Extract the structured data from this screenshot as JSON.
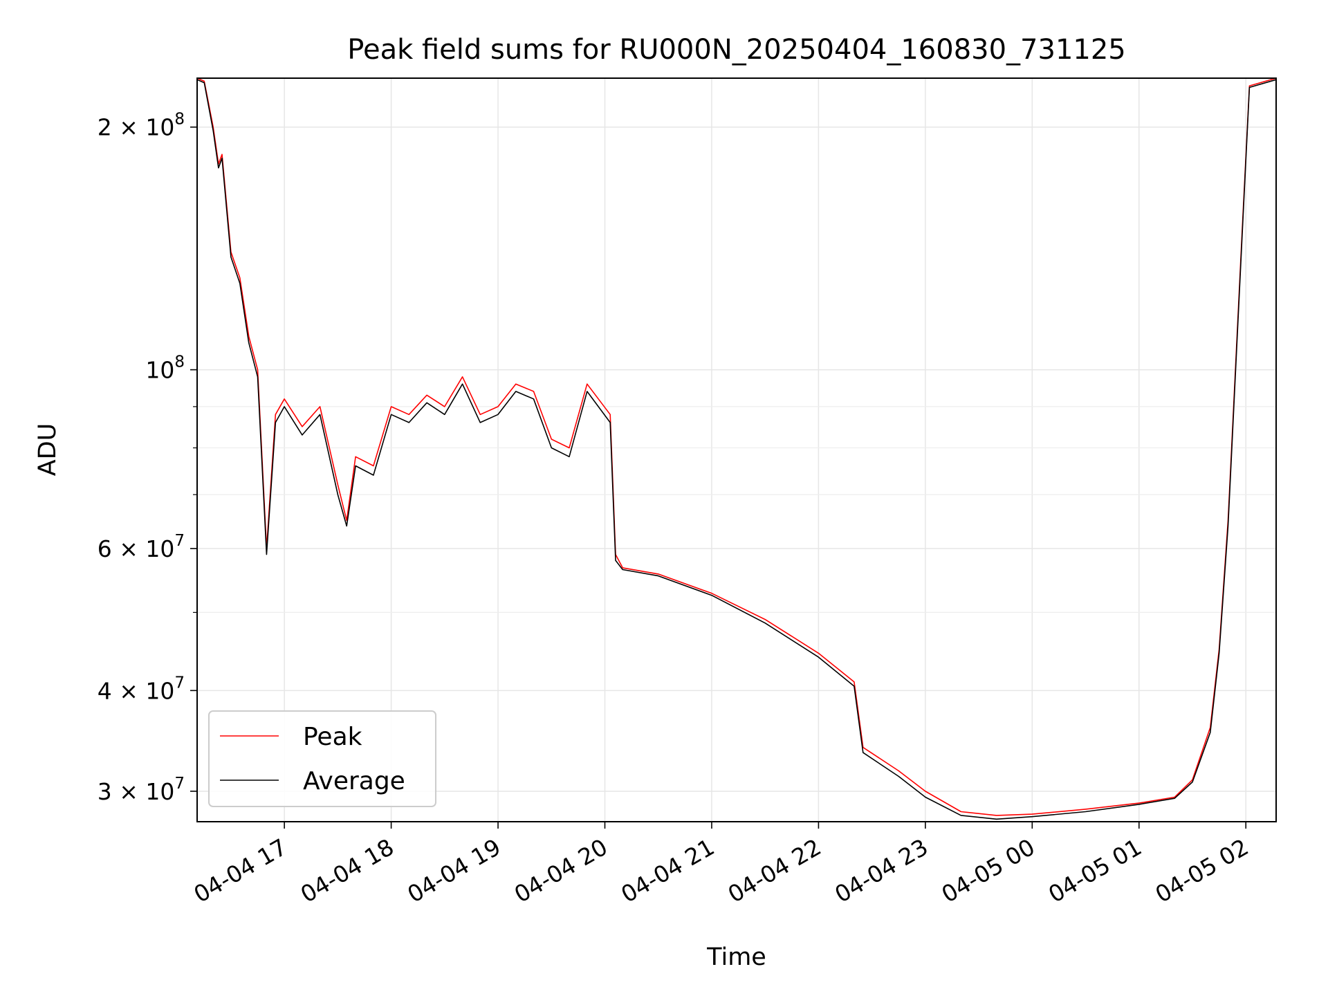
{
  "chart_data": {
    "type": "line",
    "title": "Peak field sums for RU000N_20250404_160830_731125",
    "xlabel": "Time",
    "ylabel": "ADU",
    "yscale": "log",
    "xlim": [
      "2025-04-04 16:11",
      "2025-04-05 02:17"
    ],
    "ylim": [
      27500000,
      230000000
    ],
    "grid": true,
    "legend_position": "lower-left",
    "x_ticks": [
      "04-04 17",
      "04-04 18",
      "04-04 19",
      "04-04 20",
      "04-04 21",
      "04-04 22",
      "04-04 23",
      "04-05 00",
      "04-05 01",
      "04-05 02"
    ],
    "x_tick_times": [
      "2025-04-04 17:00",
      "2025-04-04 18:00",
      "2025-04-04 19:00",
      "2025-04-04 20:00",
      "2025-04-04 21:00",
      "2025-04-04 22:00",
      "2025-04-04 23:00",
      "2025-04-05 00:00",
      "2025-04-05 01:00",
      "2025-04-05 02:00"
    ],
    "y_ticks": [
      {
        "value": 200000000,
        "mantissa": "2",
        "exponent": "8"
      },
      {
        "value": 100000000,
        "mantissa": "",
        "exponent": "8"
      },
      {
        "value": 60000000,
        "mantissa": "6",
        "exponent": "7"
      },
      {
        "value": 40000000,
        "mantissa": "4",
        "exponent": "7"
      },
      {
        "value": 30000000,
        "mantissa": "3",
        "exponent": "7"
      }
    ],
    "y_minor_ticks": [
      50000000,
      70000000,
      80000000,
      90000000
    ],
    "series": [
      {
        "name": "Peak",
        "color": "#ff0000",
        "x": [
          "2025-04-04 16:11",
          "2025-04-04 16:15",
          "2025-04-04 16:20",
          "2025-04-04 16:23",
          "2025-04-04 16:25",
          "2025-04-04 16:30",
          "2025-04-04 16:35",
          "2025-04-04 16:40",
          "2025-04-04 16:45",
          "2025-04-04 16:50",
          "2025-04-04 16:55",
          "2025-04-04 17:00",
          "2025-04-04 17:10",
          "2025-04-04 17:20",
          "2025-04-04 17:30",
          "2025-04-04 17:35",
          "2025-04-04 17:40",
          "2025-04-04 17:50",
          "2025-04-04 18:00",
          "2025-04-04 18:10",
          "2025-04-04 18:20",
          "2025-04-04 18:30",
          "2025-04-04 18:40",
          "2025-04-04 18:50",
          "2025-04-04 19:00",
          "2025-04-04 19:10",
          "2025-04-04 19:20",
          "2025-04-04 19:30",
          "2025-04-04 19:40",
          "2025-04-04 19:50",
          "2025-04-04 20:03",
          "2025-04-04 20:06",
          "2025-04-04 20:10",
          "2025-04-04 20:30",
          "2025-04-04 21:00",
          "2025-04-04 21:30",
          "2025-04-04 22:00",
          "2025-04-04 22:20",
          "2025-04-04 22:25",
          "2025-04-04 22:45",
          "2025-04-04 23:00",
          "2025-04-04 23:20",
          "2025-04-04 23:40",
          "2025-04-05 00:00",
          "2025-04-05 00:30",
          "2025-04-05 01:00",
          "2025-04-05 01:20",
          "2025-04-05 01:30",
          "2025-04-05 01:40",
          "2025-04-05 01:45",
          "2025-04-05 01:50",
          "2025-04-05 01:58",
          "2025-04-05 02:02",
          "2025-04-05 02:17"
        ],
        "values": [
          230000000,
          228000000,
          200000000,
          180000000,
          185000000,
          140000000,
          130000000,
          110000000,
          100000000,
          60000000,
          88000000,
          92000000,
          85000000,
          90000000,
          72000000,
          65000000,
          78000000,
          76000000,
          90000000,
          88000000,
          93000000,
          90000000,
          98000000,
          88000000,
          90000000,
          96000000,
          94000000,
          82000000,
          80000000,
          96000000,
          88000000,
          59000000,
          56800000,
          55800000,
          52800000,
          49000000,
          44500000,
          41000000,
          34000000,
          31800000,
          30000000,
          28300000,
          28000000,
          28100000,
          28500000,
          29000000,
          29500000,
          31000000,
          36000000,
          45000000,
          65000000,
          150000000,
          225000000,
          230000000
        ]
      },
      {
        "name": "Average",
        "color": "#000000",
        "x": [
          "2025-04-04 16:11",
          "2025-04-04 16:15",
          "2025-04-04 16:20",
          "2025-04-04 16:23",
          "2025-04-04 16:25",
          "2025-04-04 16:30",
          "2025-04-04 16:35",
          "2025-04-04 16:40",
          "2025-04-04 16:45",
          "2025-04-04 16:50",
          "2025-04-04 16:55",
          "2025-04-04 17:00",
          "2025-04-04 17:10",
          "2025-04-04 17:20",
          "2025-04-04 17:30",
          "2025-04-04 17:35",
          "2025-04-04 17:40",
          "2025-04-04 17:50",
          "2025-04-04 18:00",
          "2025-04-04 18:10",
          "2025-04-04 18:20",
          "2025-04-04 18:30",
          "2025-04-04 18:40",
          "2025-04-04 18:50",
          "2025-04-04 19:00",
          "2025-04-04 19:10",
          "2025-04-04 19:20",
          "2025-04-04 19:30",
          "2025-04-04 19:40",
          "2025-04-04 19:50",
          "2025-04-04 20:03",
          "2025-04-04 20:06",
          "2025-04-04 20:10",
          "2025-04-04 20:30",
          "2025-04-04 21:00",
          "2025-04-04 21:30",
          "2025-04-04 22:00",
          "2025-04-04 22:20",
          "2025-04-04 22:25",
          "2025-04-04 22:45",
          "2025-04-04 23:00",
          "2025-04-04 23:20",
          "2025-04-04 23:40",
          "2025-04-05 00:00",
          "2025-04-05 00:30",
          "2025-04-05 01:00",
          "2025-04-05 01:20",
          "2025-04-05 01:30",
          "2025-04-05 01:40",
          "2025-04-05 01:45",
          "2025-04-05 01:50",
          "2025-04-05 01:58",
          "2025-04-05 02:02",
          "2025-04-05 02:17"
        ],
        "values": [
          229000000,
          227000000,
          198000000,
          178000000,
          183000000,
          138000000,
          128000000,
          108000000,
          98000000,
          59000000,
          86000000,
          90000000,
          83000000,
          88000000,
          70000000,
          64000000,
          76000000,
          74000000,
          88000000,
          86000000,
          91000000,
          88000000,
          96000000,
          86000000,
          88000000,
          94000000,
          92000000,
          80000000,
          78000000,
          94000000,
          86000000,
          58000000,
          56500000,
          55500000,
          52500000,
          48500000,
          44000000,
          40500000,
          33500000,
          31300000,
          29500000,
          28000000,
          27700000,
          27900000,
          28300000,
          28900000,
          29400000,
          30800000,
          35500000,
          44500000,
          64000000,
          148000000,
          224000000,
          229000000
        ]
      }
    ]
  }
}
